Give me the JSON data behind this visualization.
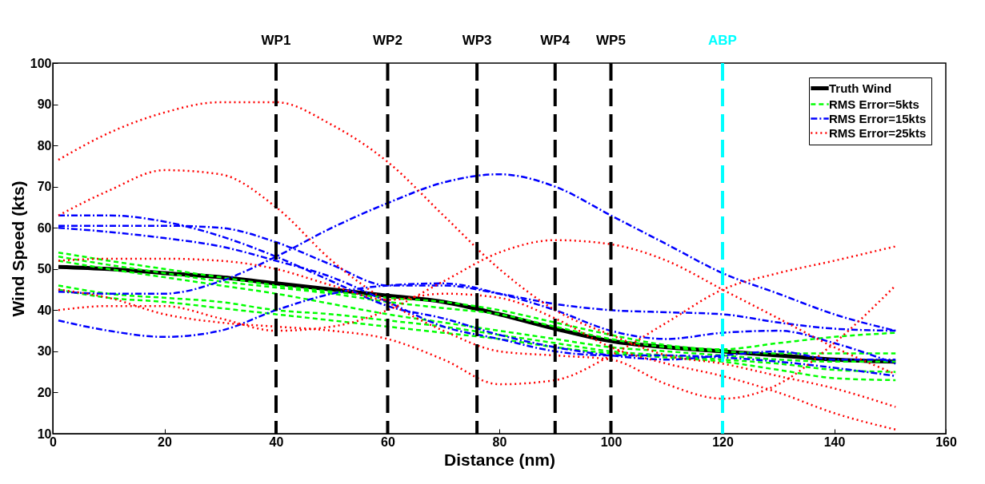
{
  "chart_data": {
    "type": "line",
    "xlabel": "Distance (nm)",
    "ylabel": "Wind Speed (kts)",
    "xlim": [
      0,
      160
    ],
    "xticks": [
      0,
      20,
      40,
      60,
      80,
      100,
      120,
      140,
      160
    ],
    "ylim": [
      10,
      100
    ],
    "yticks": [
      10,
      20,
      30,
      40,
      50,
      60,
      70,
      80,
      90,
      100
    ],
    "grid": false,
    "legend": "top right",
    "x": [
      1,
      10,
      20,
      30,
      40,
      50,
      60,
      70,
      80,
      90,
      100,
      110,
      120,
      130,
      140,
      151
    ],
    "series": [
      {
        "name": "Truth Wind",
        "color": "#000000",
        "line_style": "solid",
        "values": [
          50.5,
          50,
          49,
          48,
          46.5,
          45,
          43.5,
          42,
          39,
          35.5,
          32.5,
          31,
          30,
          29,
          28,
          27.5
        ]
      },
      {
        "name": "RMS Error=5kts",
        "color": "#00ff00",
        "line_style": "dashed",
        "values": [
          54,
          52,
          50,
          48,
          46,
          44.5,
          43,
          42,
          40,
          37,
          34,
          31.5,
          30.5,
          32,
          33.5,
          34.5
        ]
      },
      {
        "color": "#00ff00",
        "line_style": "dashed",
        "values": [
          53,
          51,
          49,
          47,
          45.5,
          44,
          42,
          40.5,
          39,
          36,
          33,
          31,
          30,
          29.5,
          29.5,
          29.5
        ]
      },
      {
        "color": "#00ff00",
        "line_style": "dashed",
        "values": [
          52,
          50,
          48,
          46,
          44,
          41.5,
          39,
          37,
          35,
          33,
          31,
          30,
          29,
          28,
          27.5,
          27.5
        ]
      },
      {
        "color": "#00ff00",
        "line_style": "dashed",
        "values": [
          46,
          44,
          43,
          42,
          40,
          39,
          37.5,
          36,
          34,
          32,
          30,
          29,
          28,
          27,
          25.5,
          25
        ]
      },
      {
        "color": "#00ff00",
        "line_style": "dashed",
        "values": [
          45,
          43,
          42,
          40.5,
          39,
          37.5,
          36,
          34.5,
          33,
          31,
          29.5,
          28.5,
          27.5,
          25.5,
          23.5,
          23
        ]
      },
      {
        "name": "RMS Error=15kts",
        "color": "#0000ff",
        "line_style": "dashdot",
        "values": [
          63,
          63,
          61.5,
          58,
          53,
          47,
          41,
          38,
          34,
          31,
          29,
          28,
          29,
          30,
          28,
          28
        ]
      },
      {
        "color": "#0000ff",
        "line_style": "dashdot",
        "values": [
          60.5,
          60.5,
          60.5,
          60,
          56.5,
          51,
          46,
          46,
          44,
          41.5,
          40,
          39.5,
          39,
          37,
          35.5,
          35
        ]
      },
      {
        "color": "#0000ff",
        "line_style": "dashdot",
        "values": [
          60,
          59,
          57.5,
          55.5,
          52,
          48,
          42,
          36,
          33,
          30,
          29,
          29,
          28.5,
          27.5,
          26,
          24
        ]
      },
      {
        "color": "#0000ff",
        "line_style": "dashdot",
        "values": [
          44.5,
          44,
          44,
          47,
          53,
          60,
          66,
          71,
          73,
          70,
          63,
          56,
          49,
          44,
          39,
          35
        ]
      },
      {
        "color": "#0000ff",
        "line_style": "dashdot",
        "values": [
          37.5,
          35,
          33.5,
          35,
          40,
          44,
          46,
          46.5,
          44,
          40,
          35,
          33,
          34.5,
          35,
          32,
          27
        ]
      },
      {
        "name": "RMS Error=25kts",
        "color": "#ff0000",
        "line_style": "dotted",
        "values": [
          76.5,
          83,
          88,
          90.5,
          90.5,
          85,
          76,
          63,
          50,
          40,
          34,
          29,
          27,
          24,
          21,
          16.5
        ]
      },
      {
        "color": "#ff0000",
        "line_style": "dotted",
        "values": [
          63,
          69,
          74,
          73,
          65,
          52,
          42,
          35,
          30,
          29,
          28,
          22,
          18.5,
          22,
          32,
          46
        ]
      },
      {
        "color": "#ff0000",
        "line_style": "dotted",
        "values": [
          52,
          52.5,
          52.5,
          52,
          50,
          46,
          42.5,
          44,
          43,
          38,
          31,
          27,
          24,
          20,
          15,
          11
        ]
      },
      {
        "color": "#ff0000",
        "line_style": "dotted",
        "values": [
          45,
          43,
          39,
          37,
          36,
          35,
          33,
          28,
          22,
          23,
          29,
          37,
          45,
          49,
          52,
          55.5
        ]
      },
      {
        "color": "#ff0000",
        "line_style": "dotted",
        "values": [
          40,
          41,
          41,
          38,
          35,
          36,
          40,
          47,
          54,
          57,
          56,
          52,
          45,
          38,
          31,
          24.5
        ]
      }
    ],
    "ref_lines": [
      {
        "axis": "x",
        "value": 40,
        "label": "WP1",
        "color": "#000000",
        "line_style": "dashed"
      },
      {
        "axis": "x",
        "value": 60,
        "label": "WP2",
        "color": "#000000",
        "line_style": "dashed"
      },
      {
        "axis": "x",
        "value": 76,
        "label": "WP3",
        "color": "#000000",
        "line_style": "dashed"
      },
      {
        "axis": "x",
        "value": 90,
        "label": "WP4",
        "color": "#000000",
        "line_style": "dashed"
      },
      {
        "axis": "x",
        "value": 100,
        "label": "WP5",
        "color": "#000000",
        "line_style": "dashed"
      },
      {
        "axis": "x",
        "value": 120,
        "label": "ABP",
        "color": "#00ffff",
        "line_style": "dashed"
      }
    ]
  }
}
